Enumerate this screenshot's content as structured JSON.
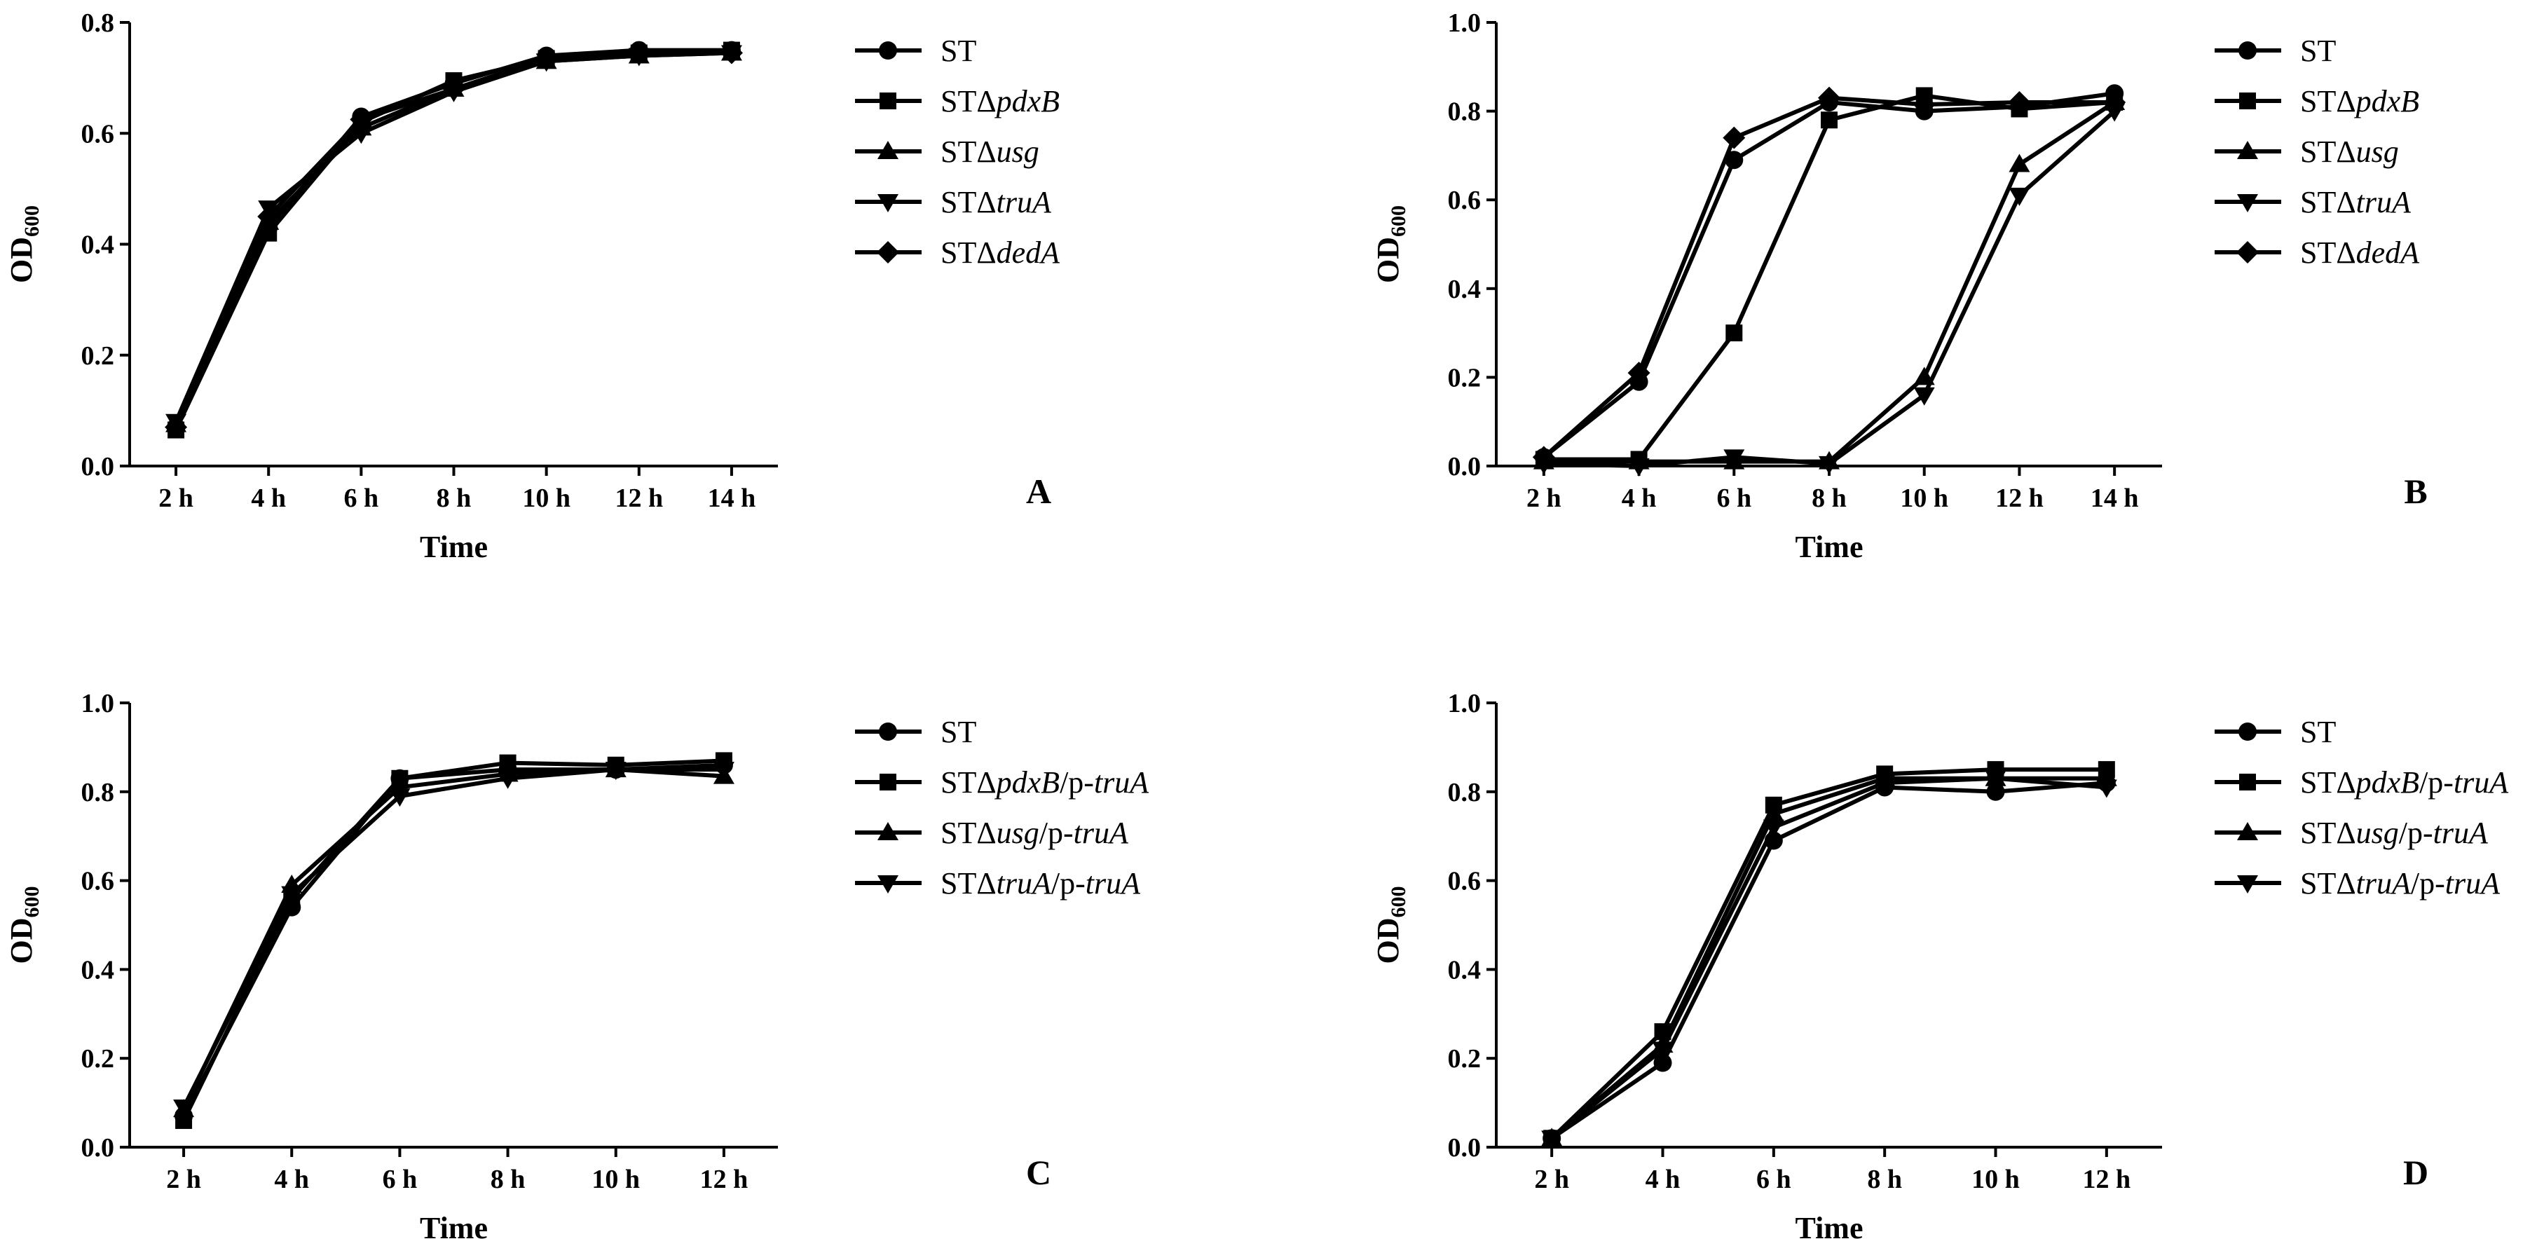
{
  "chart_data": [
    {
      "id": "A",
      "type": "line",
      "panel_label": "A",
      "xlabel": "Time",
      "ylabel_main": "OD",
      "ylabel_sub": "600",
      "categories": [
        "2 h",
        "4 h",
        "6 h",
        "8 h",
        "10 h",
        "12 h",
        "14 h"
      ],
      "ylim": [
        0.0,
        0.8
      ],
      "yticks": [
        "0.0",
        "0.2",
        "0.4",
        "0.6",
        "0.8"
      ],
      "series": [
        {
          "prefix": "ST",
          "gene": "",
          "suffix_plain": "",
          "suffix_italic": "",
          "marker": "circle",
          "values": [
            0.07,
            0.43,
            0.63,
            0.69,
            0.74,
            0.75,
            0.75
          ]
        },
        {
          "prefix": "STΔ",
          "gene": "pdxB",
          "suffix_plain": "",
          "suffix_italic": "",
          "marker": "square",
          "values": [
            0.065,
            0.42,
            0.62,
            0.695,
            0.735,
            0.745,
            0.75
          ]
        },
        {
          "prefix": "STΔ",
          "gene": "usg",
          "suffix_plain": "",
          "suffix_italic": "",
          "marker": "triangle-up",
          "values": [
            0.075,
            0.44,
            0.61,
            0.68,
            0.73,
            0.74,
            0.745
          ]
        },
        {
          "prefix": "STΔ",
          "gene": "truA",
          "suffix_plain": "",
          "suffix_italic": "",
          "marker": "triangle-down",
          "values": [
            0.08,
            0.465,
            0.6,
            0.675,
            0.73,
            0.74,
            0.745
          ]
        },
        {
          "prefix": "STΔ",
          "gene": "dedA",
          "suffix_plain": "",
          "suffix_italic": "",
          "marker": "diamond",
          "values": [
            0.07,
            0.45,
            0.625,
            0.68,
            0.735,
            0.745,
            0.745
          ]
        }
      ]
    },
    {
      "id": "B",
      "type": "line",
      "panel_label": "B",
      "xlabel": "Time",
      "ylabel_main": "OD",
      "ylabel_sub": "600",
      "categories": [
        "2 h",
        "4 h",
        "6 h",
        "8 h",
        "10 h",
        "12 h",
        "14 h"
      ],
      "ylim": [
        0.0,
        1.0
      ],
      "yticks": [
        "0.0",
        "0.2",
        "0.4",
        "0.6",
        "0.8",
        "1.0"
      ],
      "series": [
        {
          "prefix": "ST",
          "gene": "",
          "suffix_plain": "",
          "suffix_italic": "",
          "marker": "circle",
          "values": [
            0.02,
            0.19,
            0.69,
            0.82,
            0.8,
            0.81,
            0.84
          ]
        },
        {
          "prefix": "STΔ",
          "gene": "pdxB",
          "suffix_plain": "",
          "suffix_italic": "",
          "marker": "square",
          "values": [
            0.015,
            0.015,
            0.3,
            0.78,
            0.835,
            0.805,
            0.82
          ]
        },
        {
          "prefix": "STΔ",
          "gene": "usg",
          "suffix_plain": "",
          "suffix_italic": "",
          "marker": "triangle-up",
          "values": [
            0.01,
            0.01,
            0.01,
            0.01,
            0.2,
            0.68,
            0.82
          ]
        },
        {
          "prefix": "STΔ",
          "gene": "truA",
          "suffix_plain": "",
          "suffix_italic": "",
          "marker": "triangle-down",
          "values": [
            0.005,
            0.0,
            0.02,
            0.005,
            0.16,
            0.61,
            0.8
          ]
        },
        {
          "prefix": "STΔ",
          "gene": "dedA",
          "suffix_plain": "",
          "suffix_italic": "",
          "marker": "diamond",
          "values": [
            0.02,
            0.21,
            0.74,
            0.83,
            0.815,
            0.82,
            0.82
          ]
        }
      ]
    },
    {
      "id": "C",
      "type": "line",
      "panel_label": "C",
      "xlabel": "Time",
      "ylabel_main": "OD",
      "ylabel_sub": "600",
      "categories": [
        "2 h",
        "4 h",
        "6 h",
        "8 h",
        "10 h",
        "12 h"
      ],
      "ylim": [
        0.0,
        1.0
      ],
      "yticks": [
        "0.0",
        "0.2",
        "0.4",
        "0.6",
        "0.8",
        "1.0"
      ],
      "series": [
        {
          "prefix": "ST",
          "gene": "",
          "suffix_plain": "",
          "suffix_italic": "",
          "marker": "circle",
          "values": [
            0.07,
            0.54,
            0.83,
            0.85,
            0.85,
            0.86
          ]
        },
        {
          "prefix": "STΔ",
          "gene": "pdxB",
          "suffix_plain": "/p-",
          "suffix_italic": "truA",
          "marker": "square",
          "values": [
            0.06,
            0.56,
            0.83,
            0.865,
            0.86,
            0.87
          ]
        },
        {
          "prefix": "STΔ",
          "gene": "usg",
          "suffix_plain": "/p-",
          "suffix_italic": "truA",
          "marker": "triangle-up",
          "values": [
            0.085,
            0.59,
            0.81,
            0.84,
            0.85,
            0.835
          ]
        },
        {
          "prefix": "STΔ",
          "gene": "truA",
          "suffix_plain": "/p-",
          "suffix_italic": "truA",
          "marker": "triangle-down",
          "values": [
            0.09,
            0.57,
            0.79,
            0.83,
            0.85,
            0.85
          ]
        }
      ]
    },
    {
      "id": "D",
      "type": "line",
      "panel_label": "D",
      "xlabel": "Time",
      "ylabel_main": "OD",
      "ylabel_sub": "600",
      "categories": [
        "2 h",
        "4 h",
        "6 h",
        "8 h",
        "10 h",
        "12 h"
      ],
      "ylim": [
        0.0,
        1.0
      ],
      "yticks": [
        "0.0",
        "0.2",
        "0.4",
        "0.6",
        "0.8",
        "1.0"
      ],
      "series": [
        {
          "prefix": "ST",
          "gene": "",
          "suffix_plain": "",
          "suffix_italic": "",
          "marker": "circle",
          "values": [
            0.02,
            0.19,
            0.69,
            0.81,
            0.8,
            0.82
          ]
        },
        {
          "prefix": "STΔ",
          "gene": "pdxB",
          "suffix_plain": "/p-",
          "suffix_italic": "truA",
          "marker": "square",
          "values": [
            0.02,
            0.26,
            0.77,
            0.84,
            0.85,
            0.85
          ]
        },
        {
          "prefix": "STΔ",
          "gene": "usg",
          "suffix_plain": "/p-",
          "suffix_italic": "truA",
          "marker": "triangle-up",
          "values": [
            0.02,
            0.23,
            0.75,
            0.83,
            0.83,
            0.83
          ]
        },
        {
          "prefix": "STΔ",
          "gene": "truA",
          "suffix_plain": "/p-",
          "suffix_italic": "truA",
          "marker": "triangle-down",
          "values": [
            0.02,
            0.22,
            0.72,
            0.82,
            0.83,
            0.81
          ]
        }
      ]
    }
  ]
}
